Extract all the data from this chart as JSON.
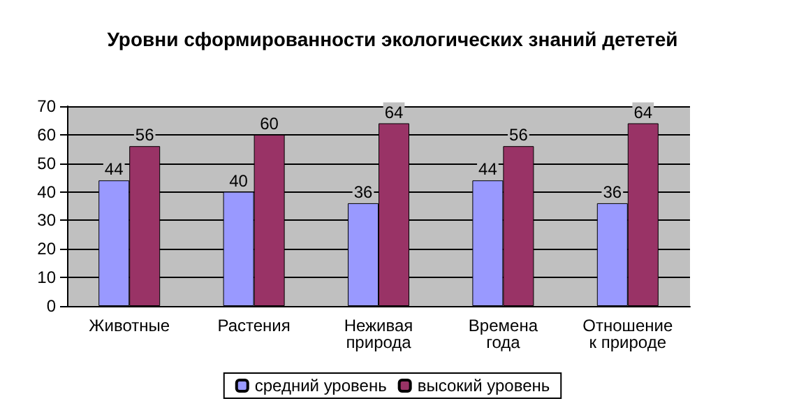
{
  "chart_data": {
    "type": "bar",
    "title": "Уровни сформированности экологических знаний дететей",
    "categories": [
      "Животные",
      "Растения",
      "Неживая природа",
      "Времена года",
      "Отношение к природе"
    ],
    "series": [
      {
        "name": "средний уровень",
        "color": "#9999ff",
        "values": [
          44,
          40,
          36,
          44,
          36
        ]
      },
      {
        "name": "высокий уровень",
        "color": "#993366",
        "values": [
          56,
          60,
          64,
          56,
          64
        ]
      }
    ],
    "ylim": [
      0,
      70
    ],
    "yticks": [
      0,
      10,
      20,
      30,
      40,
      50,
      60,
      70
    ],
    "grid": "y",
    "legend": "bottom",
    "data_labels": true
  }
}
